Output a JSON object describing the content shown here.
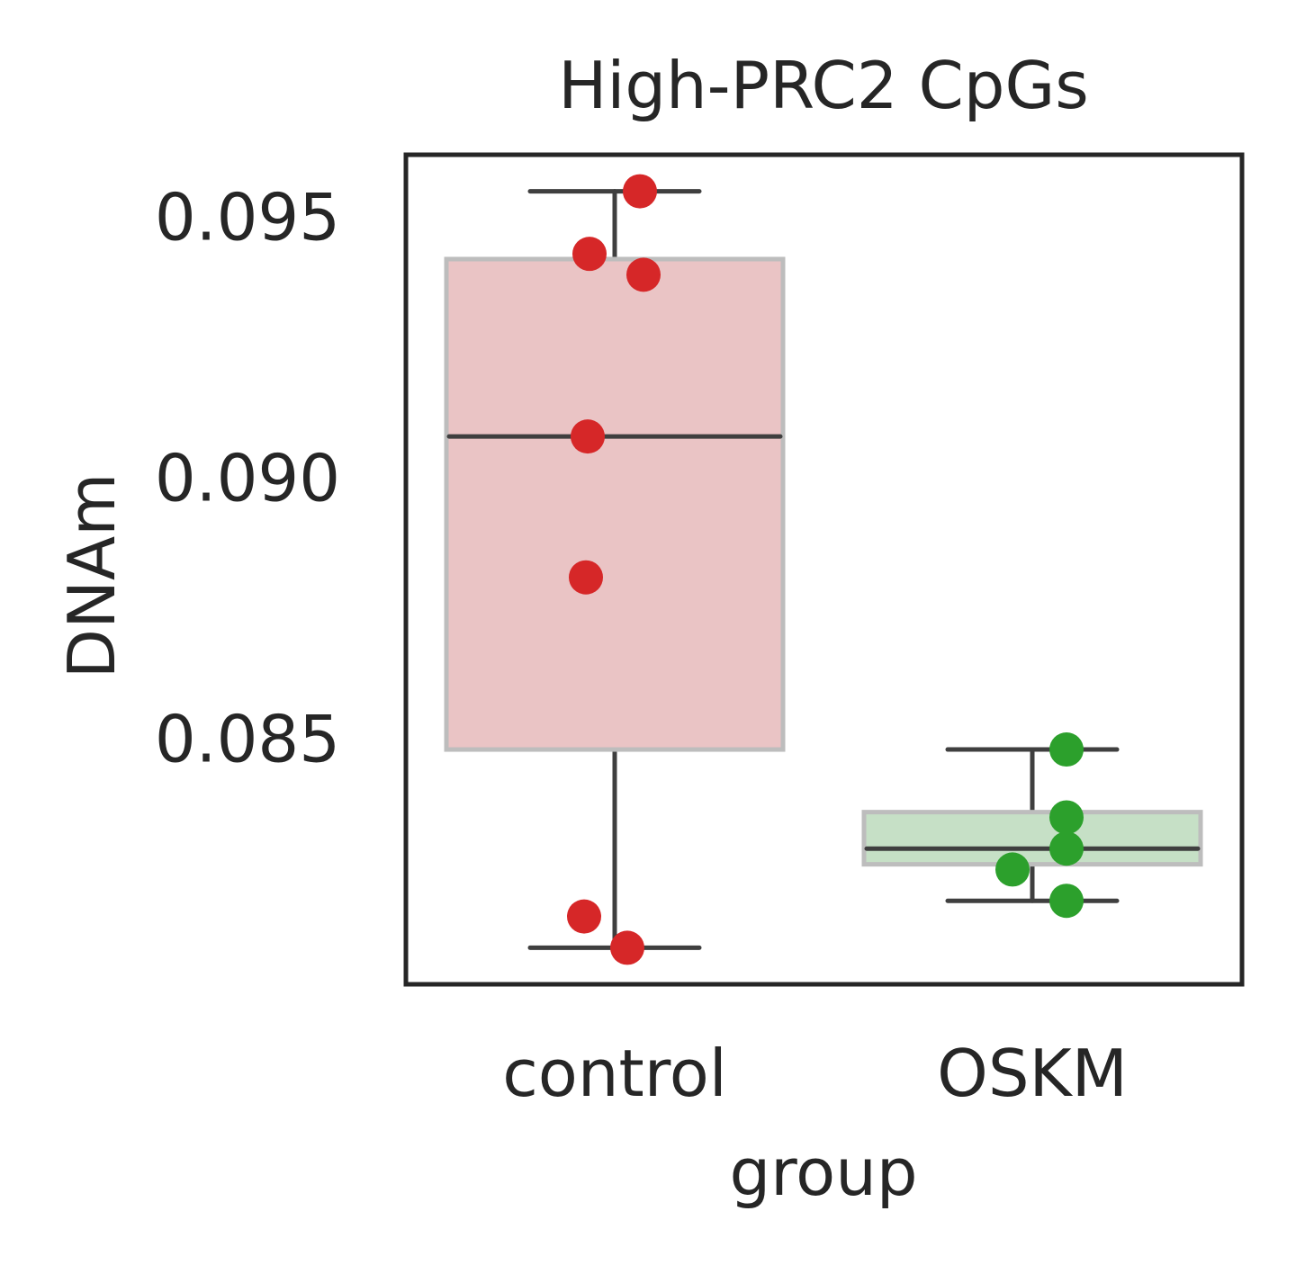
{
  "chart_data": {
    "type": "box",
    "title": "High-PRC2 CpGs",
    "xlabel": "group",
    "ylabel": "DNAm",
    "ylim": [
      0.0803,
      0.0962
    ],
    "yticks": [
      0.085,
      0.09,
      0.095
    ],
    "ytick_labels": [
      "0.085",
      "0.090",
      "0.095"
    ],
    "grid": false,
    "categories": [
      "control",
      "OSKM"
    ],
    "groups": [
      {
        "name": "control",
        "color": "#d62728",
        "box_fill": "#eac4c5",
        "whisker_low": 0.081,
        "q1": 0.0848,
        "median": 0.0908,
        "q3": 0.0942,
        "whisker_high": 0.0955,
        "points": [
          0.0955,
          0.0943,
          0.0939,
          0.0908,
          0.0881,
          0.0816,
          0.081
        ]
      },
      {
        "name": "OSKM",
        "color": "#2ca02c",
        "box_fill": "#c6e0c6",
        "whisker_low": 0.0819,
        "q1": 0.0826,
        "median": 0.0829,
        "q3": 0.0836,
        "whisker_high": 0.0848,
        "points": [
          0.0848,
          0.0835,
          0.0829,
          0.0825,
          0.0819
        ]
      }
    ]
  }
}
